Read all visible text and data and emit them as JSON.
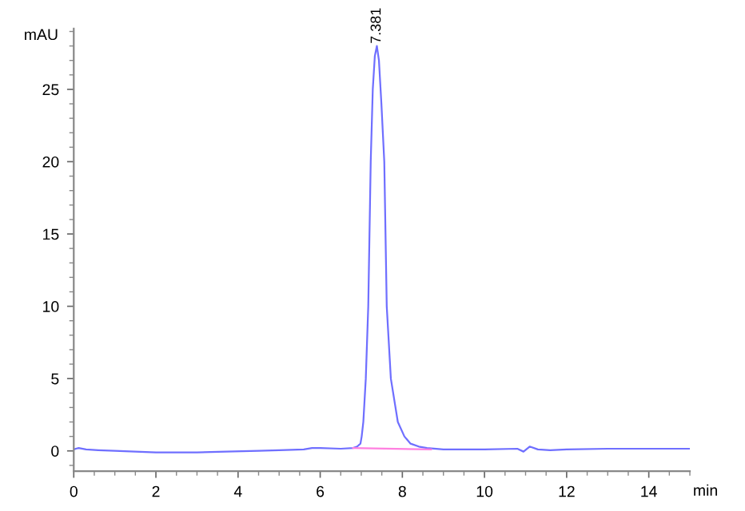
{
  "chart_data": {
    "type": "line",
    "xlabel": "min",
    "ylabel": "mAU",
    "xlim": [
      0,
      15
    ],
    "xticks": [
      0,
      2,
      4,
      6,
      8,
      10,
      12,
      14
    ],
    "ylim": [
      -1.4,
      29.2
    ],
    "yticks": [
      0,
      5,
      10,
      15,
      20,
      25
    ],
    "grid": false,
    "legend": false,
    "annotations": [
      {
        "text": "7.381",
        "x": 7.38,
        "y": 28.0
      }
    ],
    "series": [
      {
        "color": "#6f6fff",
        "x": [
          0,
          0.05,
          0.12,
          0.3,
          0.6,
          1.0,
          2.0,
          3.0,
          3.7,
          4.5,
          5.0,
          5.6,
          5.8,
          6.0,
          6.5,
          6.8,
          6.9,
          6.98,
          7.01,
          7.05,
          7.11,
          7.17,
          7.23,
          7.28,
          7.33,
          7.38,
          7.43,
          7.49,
          7.56,
          7.62,
          7.72,
          7.89,
          8.05,
          8.2,
          8.4,
          8.6,
          9.0,
          10.0,
          10.8,
          10.95,
          11.1,
          11.3,
          11.6,
          12.0,
          13.0,
          14.0,
          15.0
        ],
        "values": [
          0.1,
          0.15,
          0.2,
          0.1,
          0.05,
          0.0,
          -0.1,
          -0.1,
          -0.05,
          0.0,
          0.05,
          0.1,
          0.2,
          0.2,
          0.15,
          0.2,
          0.3,
          0.5,
          1.0,
          2.0,
          5.0,
          10.0,
          20.0,
          25.0,
          27.3,
          28.0,
          27.0,
          24.0,
          20.0,
          10.0,
          5.0,
          2.0,
          1.0,
          0.5,
          0.3,
          0.2,
          0.1,
          0.1,
          0.15,
          -0.05,
          0.3,
          0.1,
          0.05,
          0.1,
          0.15,
          0.15,
          0.15
        ]
      },
      {
        "color": "#ff80e0",
        "x": [
          6.8,
          8.7
        ],
        "values": [
          0.2,
          0.1
        ]
      }
    ]
  }
}
